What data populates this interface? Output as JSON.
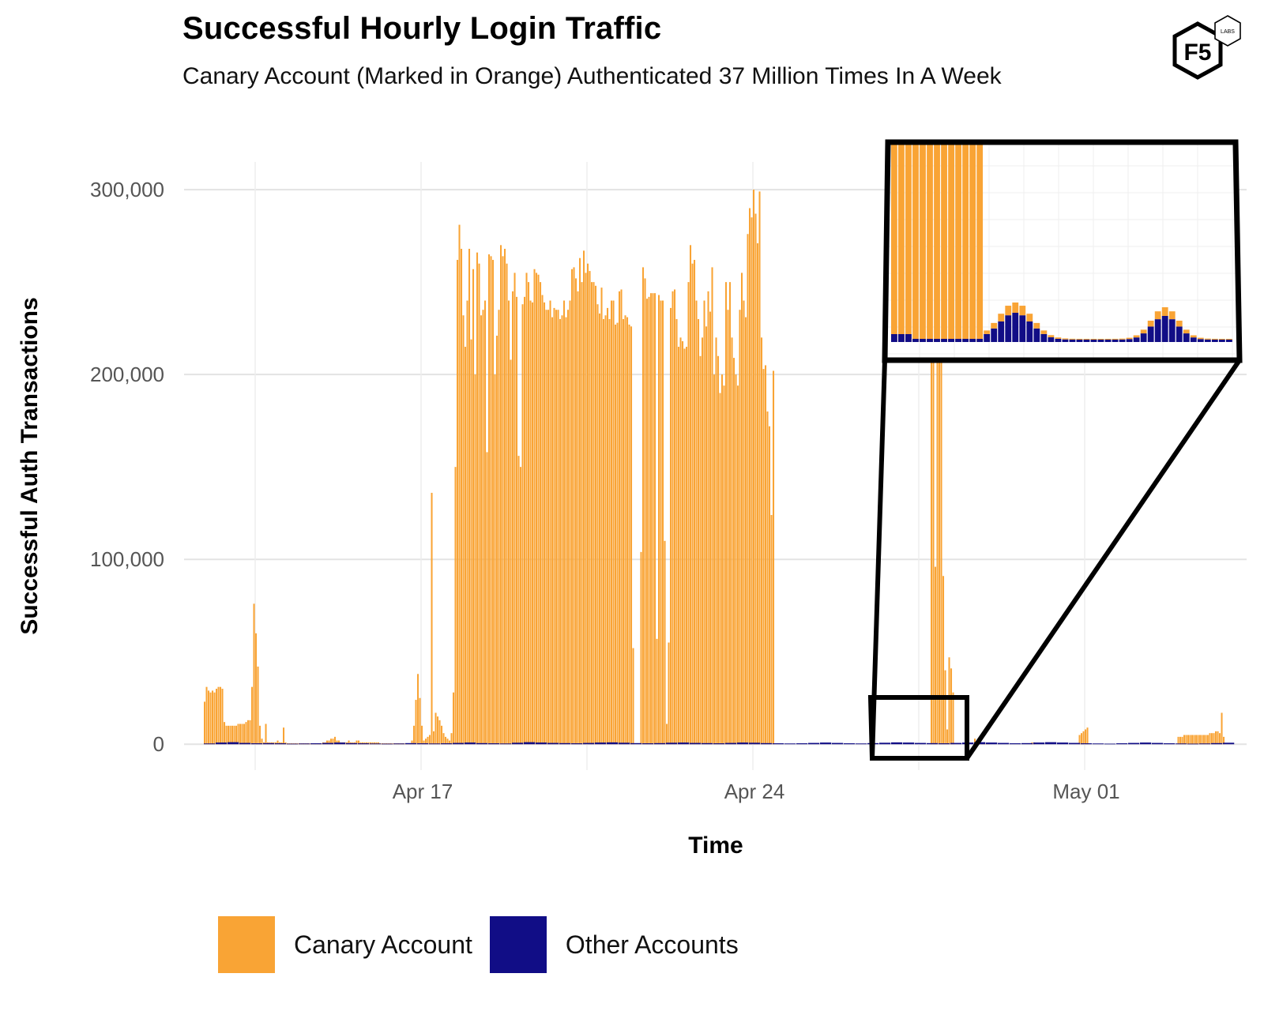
{
  "header": {
    "title": "Successful Hourly Login Traffic",
    "subtitle": "Canary Account (Marked in Orange) Authenticated 37 Million Times In A Week"
  },
  "logo": {
    "text": "F5",
    "badge": "LABS",
    "icon": "f5-labs-hexagon-logo"
  },
  "colors": {
    "canary": "#F9A435",
    "other": "#110D86",
    "grid": "#E3E3E3",
    "zoom_frame": "#000000"
  },
  "chart_data": {
    "type": "bar",
    "stacked": true,
    "title": "Successful Hourly Login Traffic",
    "subtitle": "Canary Account (Marked in Orange) Authenticated 37 Million Times In A Week",
    "xlabel": "Time",
    "ylabel": "Successful Auth Transactions",
    "ylim": [
      -14000,
      315000
    ],
    "yticks": [
      0,
      100000,
      200000,
      300000
    ],
    "ytick_labels": [
      "0",
      "100,000",
      "200,000",
      "300,000"
    ],
    "xlim": [
      "2025-04-12T00:00",
      "2025-05-04T10:00"
    ],
    "xticks": [
      "2025-04-17",
      "2025-04-24",
      "2025-05-01"
    ],
    "xtick_labels": [
      "Apr 17",
      "Apr 24",
      "May 01"
    ],
    "grid": true,
    "legend_position": "bottom-left",
    "series": [
      {
        "name": "Canary Account",
        "color": "#F9A435",
        "segments": [
          {
            "start": "2025-04-12T10:00",
            "step_hours": 1,
            "values": [
              23000,
              31000,
              29000,
              28000,
              29000,
              28000,
              30000,
              31000,
              31000,
              30000,
              12000,
              10000,
              10000,
              10000,
              10000,
              10000,
              10000,
              11000,
              11000,
              11000,
              11000,
              12000,
              13000,
              13000,
              31000,
              76000,
              60000,
              42000,
              10000,
              3000,
              1000,
              11000,
              1000,
              1000,
              1000,
              1000,
              1000,
              2000,
              1000,
              1000,
              9000,
              1000,
              500,
              500,
              500,
              500,
              500,
              500,
              500,
              500,
              500,
              500,
              500,
              500,
              500,
              500,
              500,
              500,
              500,
              500,
              1000,
              1000,
              2000,
              2000,
              3000,
              3000,
              4000,
              2000,
              2000,
              1000,
              1000,
              1000,
              1000,
              2000,
              1000,
              1000,
              1000,
              2000,
              2000,
              1000,
              1000,
              1000,
              1000,
              1000,
              1000,
              1000,
              1000,
              1000,
              1000,
              500,
              500,
              500,
              500,
              500,
              500,
              500,
              500,
              500,
              500,
              500,
              500,
              500,
              500,
              500,
              500,
              2000,
              10000,
              24000,
              38000,
              25000,
              10000,
              2000,
              3000,
              4000,
              5000,
              136000,
              7000,
              17000,
              15000,
              13000,
              10000,
              6000,
              4000,
              3000,
              2000,
              6000,
              28000,
              150000,
              262000,
              281000,
              268000,
              232000,
              215000,
              240000,
              268000,
              219000,
              257000,
              200000,
              266000,
              260000,
              232000,
              235000,
              240000,
              158000,
              265000,
              264000,
              262000,
              200000,
              221000,
              235000,
              270000,
              264000,
              268000,
              260000,
              240000,
              208000,
              245000,
              255000,
              242000,
              156000,
              150000,
              238000,
              242000,
              255000,
              250000,
              240000,
              239000,
              257000,
              255000,
              254000,
              250000,
              243000,
              239000,
              235000,
              235000,
              240000,
              231000,
              236000,
              235000,
              235000,
              230000,
              232000,
              240000,
              231000,
              235000,
              240000,
              257000,
              258000,
              252000,
              245000,
              263000,
              250000,
              267000,
              255000,
              260000,
              256000,
              250000,
              250000,
              248000,
              238000,
              233000,
              247000,
              230000,
              232000,
              236000,
              230000,
              240000,
              240000,
              227000,
              228000,
              245000,
              246000,
              230000,
              232000,
              231000,
              227000,
              226000,
              52000,
              0,
              0,
              0,
              104000,
              258000,
              252000,
              241000,
              242000,
              244000,
              244000,
              244000,
              57000,
              243000,
              240000,
              240000,
              110000,
              11000,
              55000,
              236000,
              245000,
              246000,
              230000,
              215000,
              220000,
              218000,
              214000,
              215000,
              250000,
              270000,
              260000,
              262000,
              240000,
              230000,
              210000,
              220000,
              240000,
              226000,
              245000,
              234000,
              258000,
              200000,
              220000,
              210000,
              190000,
              200000,
              194000,
              250000,
              235000,
              250000,
              220000,
              209000,
              200000,
              194000,
              235000,
              255000,
              240000,
              231000,
              276000,
              290000,
              285000,
              300000,
              287000,
              271000,
              299000,
              220000,
              203000,
              205000,
              180000,
              172000,
              124000,
              202000
            ],
            "note_values_continue": true
          },
          {
            "start": "2025-04-27T18:00",
            "step_hours": 1,
            "values": [
              230000,
              207000,
              96000,
              275000,
              284000,
              262000,
              91000,
              40000,
              8000,
              47000,
              41000,
              28000
            ]
          },
          {
            "start": "2025-04-28T16:00",
            "step_hours": 1,
            "values": [
              3000,
              1000,
              500,
              500,
              500,
              500,
              500,
              500
            ]
          },
          {
            "start": "2025-04-29T21:00",
            "step_hours": 1,
            "values": [
              1000,
              1000
            ]
          },
          {
            "start": "2025-04-30T21:00",
            "step_hours": 1,
            "values": [
              5000,
              6000,
              7000,
              8000,
              9000
            ]
          },
          {
            "start": "2025-05-02T23:00",
            "step_hours": 1,
            "values": [
              4000,
              4000,
              4000,
              5000,
              5000,
              5000,
              5000,
              5000,
              5000,
              5000,
              5000,
              5000,
              5000,
              5000,
              5000,
              5000,
              6000,
              6000,
              6000,
              7000,
              7000,
              6000,
              17000,
              4000
            ]
          }
        ]
      },
      {
        "name": "Other Accounts",
        "color": "#110D86",
        "approx_hourly_range": [
          100,
          1200
        ],
        "segments": [
          {
            "start": "2025-04-12T10:00",
            "step_hours": 6,
            "values": [
              400,
              900,
              1100,
              700,
              500,
              600,
              500,
              300,
              400,
              500,
              700,
              900,
              600,
              500,
              400,
              300,
              400,
              600,
              500,
              400,
              500,
              700,
              900,
              600,
              500,
              400,
              800,
              1100,
              900,
              700,
              600,
              500,
              700,
              900,
              1000,
              800,
              600,
              500,
              600,
              800,
              900,
              700,
              600,
              500,
              700,
              900,
              800,
              600,
              500,
              400,
              500,
              700,
              900,
              700,
              500,
              400,
              600,
              800,
              1000,
              900,
              700,
              600,
              500,
              700,
              900,
              1100,
              900,
              700,
              500,
              600,
              900,
              1100,
              900,
              700,
              500,
              400,
              300,
              500,
              700,
              900,
              700,
              500,
              400,
              300,
              400,
              600,
              800
            ]
          }
        ]
      }
    ],
    "inset": {
      "description_source": "zoomed view of the low-traffic region Apr 27 – Apr 30",
      "canary_block_clipped": true,
      "other_accounts_bumps": [
        "two rises around Apr 28 and Apr 29"
      ]
    }
  },
  "legend": {
    "items": [
      {
        "label": "Canary Account",
        "color": "#F9A435"
      },
      {
        "label": "Other Accounts",
        "color": "#110D86"
      }
    ]
  }
}
